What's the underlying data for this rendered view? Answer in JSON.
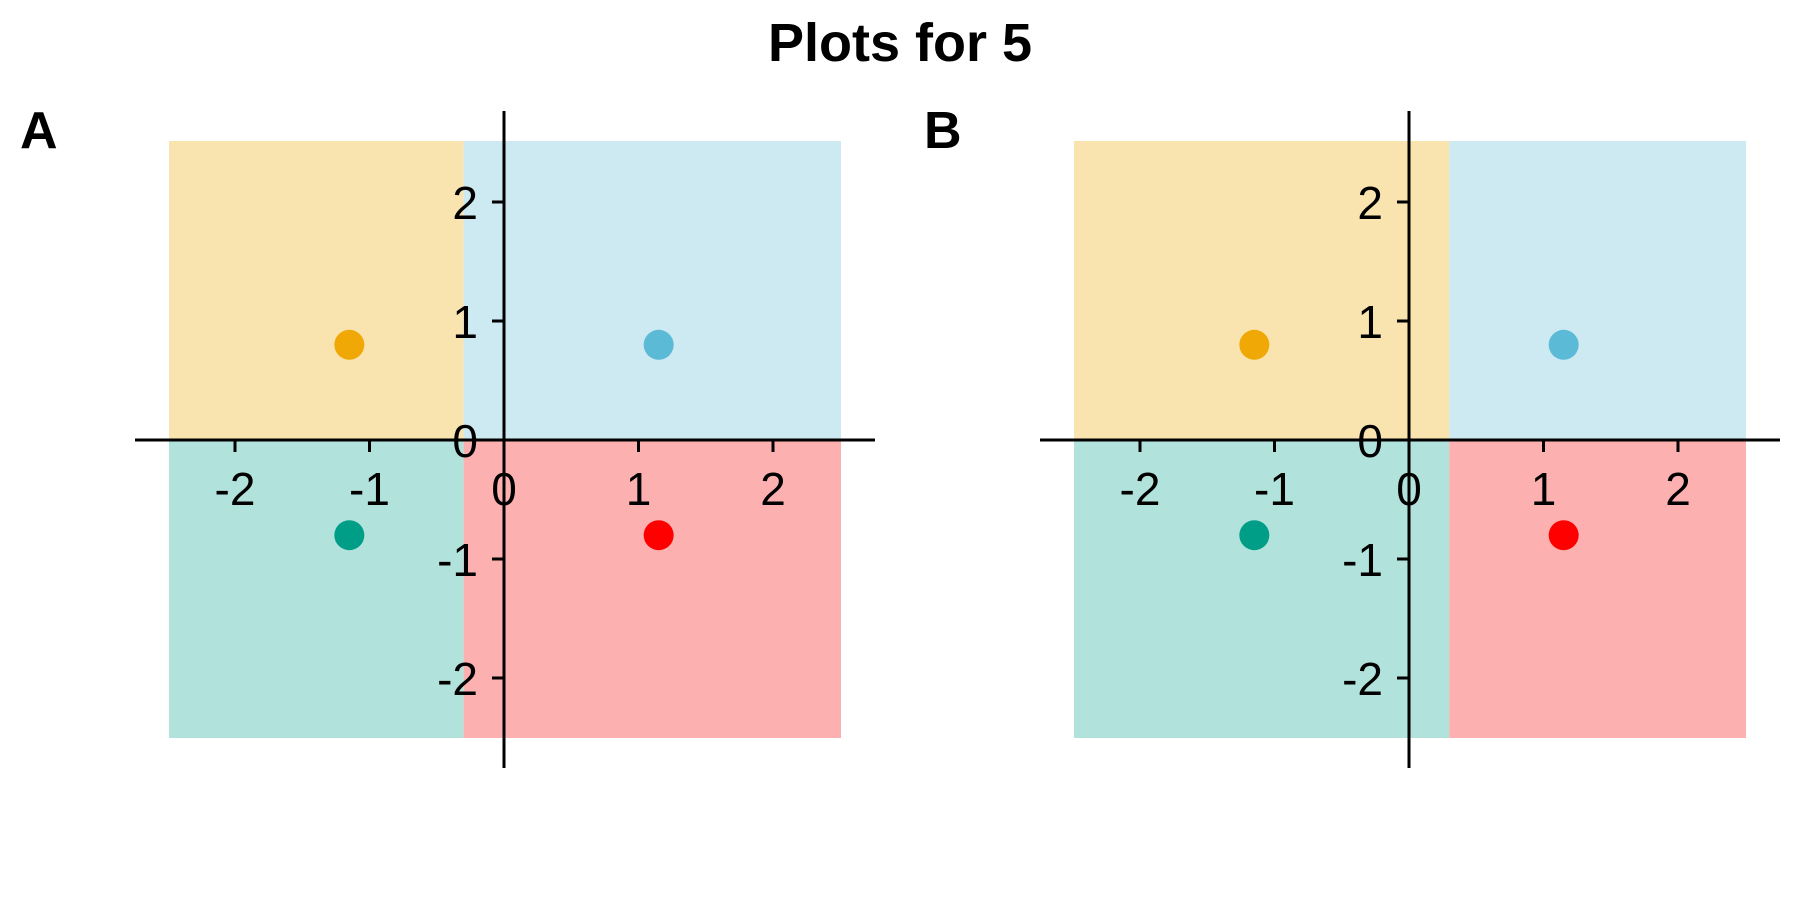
{
  "title": "Plots for 5",
  "colors": {
    "q2_fill": "#F9E4B0",
    "q1_fill": "#CDE9F1",
    "q3_fill": "#B2E2DC",
    "q4_fill": "#FDB0B0",
    "point_q2": "#F0A807",
    "point_q1": "#5BBAD5",
    "point_q3": "#009E87",
    "point_q4": "#FF0000",
    "axis": "#000000"
  },
  "chart_data": [
    {
      "type": "scatter",
      "panel_label": "A",
      "xlim": [
        -2.5,
        2.5
      ],
      "ylim": [
        -2.5,
        2.5
      ],
      "x_ticks": [
        -2,
        -1,
        0,
        1,
        2
      ],
      "y_ticks": [
        -2,
        -1,
        0,
        1,
        2
      ],
      "x_tick_labels": [
        "-2",
        "-1",
        "0",
        "1",
        "2"
      ],
      "y_tick_labels": [
        "-2",
        "-1",
        "0",
        "1",
        "2"
      ],
      "vertical_split_x": -0.3,
      "horizontal_split_y": 0,
      "regions": [
        {
          "name": "upper-left",
          "color_key": "q2_fill"
        },
        {
          "name": "upper-right",
          "color_key": "q1_fill"
        },
        {
          "name": "lower-left",
          "color_key": "q3_fill"
        },
        {
          "name": "lower-right",
          "color_key": "q4_fill"
        }
      ],
      "points": [
        {
          "x": -1.15,
          "y": 0.8,
          "color_key": "point_q2"
        },
        {
          "x": 1.15,
          "y": 0.8,
          "color_key": "point_q1"
        },
        {
          "x": -1.15,
          "y": -0.8,
          "color_key": "point_q3"
        },
        {
          "x": 1.15,
          "y": -0.8,
          "color_key": "point_q4"
        }
      ],
      "grid": false
    },
    {
      "type": "scatter",
      "panel_label": "B",
      "xlim": [
        -2.5,
        2.5
      ],
      "ylim": [
        -2.5,
        2.5
      ],
      "x_ticks": [
        -2,
        -1,
        0,
        1,
        2
      ],
      "y_ticks": [
        -2,
        -1,
        0,
        1,
        2
      ],
      "x_tick_labels": [
        "-2",
        "-1",
        "0",
        "1",
        "2"
      ],
      "y_tick_labels": [
        "-2",
        "-1",
        "0",
        "1",
        "2"
      ],
      "vertical_split_x": 0.3,
      "horizontal_split_y": 0,
      "regions": [
        {
          "name": "upper-left",
          "color_key": "q2_fill"
        },
        {
          "name": "upper-right",
          "color_key": "q1_fill"
        },
        {
          "name": "lower-left",
          "color_key": "q3_fill"
        },
        {
          "name": "lower-right",
          "color_key": "q4_fill"
        }
      ],
      "points": [
        {
          "x": -1.15,
          "y": 0.8,
          "color_key": "point_q2"
        },
        {
          "x": 1.15,
          "y": 0.8,
          "color_key": "point_q1"
        },
        {
          "x": -1.15,
          "y": -0.8,
          "color_key": "point_q3"
        },
        {
          "x": 1.15,
          "y": -0.8,
          "color_key": "point_q4"
        }
      ],
      "grid": false
    }
  ]
}
